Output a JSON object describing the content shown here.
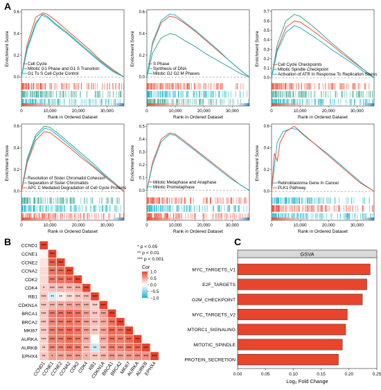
{
  "panel_labels": {
    "a": "A",
    "b": "B",
    "c": "C"
  },
  "colors": {
    "red": "#ef4d35",
    "cyan": "#19b4cb",
    "teal": "#36a58f",
    "blue": "#2c6ea8",
    "pos": "#e8452c",
    "neg": "#1eb1d2"
  },
  "chart_data": [
    {
      "type": "line",
      "panel": "A1",
      "ylabel": "Enrichment Score",
      "xlabel": "Rank in Ordered Dataset",
      "xlim": [
        0,
        36000
      ],
      "ylim": [
        -0.05,
        0.62
      ],
      "xticks": [
        "0",
        "10,000",
        "20,000",
        "30,000"
      ],
      "xtick_values": [
        0,
        10000,
        20000,
        30000
      ],
      "yticks": [
        "0.0",
        "0.2",
        "0.4",
        "0.6"
      ],
      "ytick_values": [
        0,
        0.2,
        0.4,
        0.6
      ],
      "legend": [
        "Cell Cycle",
        "Mitotic G1 Phase and G1 S Transition",
        "G1 To S Cell Cycle Control"
      ],
      "series": [
        {
          "name": "Cell Cycle",
          "color": "red",
          "x": [
            0,
            2000,
            5000,
            7500,
            9000,
            12000,
            16000,
            20000,
            24000,
            28000,
            32000,
            36000
          ],
          "y": [
            0,
            0.3,
            0.55,
            0.59,
            0.58,
            0.52,
            0.43,
            0.34,
            0.25,
            0.15,
            0.07,
            0
          ]
        },
        {
          "name": "Mitotic G1 Phase and G1 S Transition",
          "color": "teal",
          "x": [
            0,
            2000,
            5000,
            7500,
            9000,
            12000,
            16000,
            20000,
            24000,
            28000,
            32000,
            36000
          ],
          "y": [
            0,
            0.27,
            0.5,
            0.58,
            0.56,
            0.49,
            0.41,
            0.32,
            0.23,
            0.14,
            0.06,
            0
          ]
        },
        {
          "name": "G1 To S Cell Cycle Control",
          "color": "cyan",
          "x": [
            0,
            2000,
            5000,
            7000,
            9000,
            12000,
            16000,
            20000,
            24000,
            28000,
            32000,
            36000
          ],
          "y": [
            0,
            0.25,
            0.48,
            0.57,
            0.55,
            0.48,
            0.4,
            0.31,
            0.22,
            0.13,
            0.05,
            0
          ]
        }
      ]
    },
    {
      "type": "line",
      "panel": "A2",
      "ylabel": "Enrichment Score",
      "xlabel": "Rank in Ordered Dataset",
      "xlim": [
        0,
        36000
      ],
      "ylim": [
        -0.05,
        0.62
      ],
      "xticks": [
        "0",
        "10,000",
        "20,000",
        "30,000"
      ],
      "xtick_values": [
        0,
        10000,
        20000,
        30000
      ],
      "yticks": [
        "0.0",
        "0.2",
        "0.4",
        "0.6"
      ],
      "ytick_values": [
        0,
        0.2,
        0.4,
        0.6
      ],
      "legend": [
        "S Phase",
        "Synthesis of DNA",
        "Mitotic G2 G2 M Phases"
      ],
      "series": [
        {
          "name": "S Phase",
          "color": "red",
          "x": [
            0,
            2000,
            5000,
            8000,
            10000,
            13000,
            17000,
            21000,
            25000,
            29000,
            33000,
            36000
          ],
          "y": [
            0,
            0.3,
            0.5,
            0.56,
            0.55,
            0.5,
            0.42,
            0.33,
            0.24,
            0.15,
            0.06,
            0
          ]
        },
        {
          "name": "Synthesis of DNA",
          "color": "cyan",
          "x": [
            0,
            2000,
            5000,
            8000,
            10000,
            13000,
            17000,
            21000,
            25000,
            29000,
            33000,
            36000
          ],
          "y": [
            0,
            0.32,
            0.52,
            0.58,
            0.57,
            0.51,
            0.43,
            0.34,
            0.25,
            0.15,
            0.06,
            0
          ]
        },
        {
          "name": "Mitotic G2 G2 M Phases",
          "color": "teal",
          "x": [
            0,
            2000,
            5000,
            8000,
            10000,
            13000,
            17000,
            21000,
            25000,
            29000,
            33000,
            36000
          ],
          "y": [
            0,
            0.22,
            0.36,
            0.4,
            0.39,
            0.34,
            0.28,
            0.21,
            0.15,
            0.09,
            0.03,
            0
          ]
        }
      ]
    },
    {
      "type": "line",
      "panel": "A3",
      "ylabel": "Enrichment Score",
      "xlabel": "Rank in Ordered Dataset",
      "xlim": [
        0,
        36000
      ],
      "ylim": [
        -0.05,
        0.72
      ],
      "xticks": [
        "0",
        "10,000",
        "20,000",
        "30,000"
      ],
      "xtick_values": [
        0,
        10000,
        20000,
        30000
      ],
      "yticks": [
        "0.0",
        "0.1",
        "0.2",
        "0.3",
        "0.4",
        "0.5",
        "0.6",
        "0.7"
      ],
      "ytick_values": [
        0,
        0.1,
        0.2,
        0.3,
        0.4,
        0.5,
        0.6,
        0.7
      ],
      "legend": [
        "Cell Cycle Checkpoints",
        "Mitotic Spindle Checkpoint",
        "Activation of ATR In Response To Replication Stress"
      ],
      "series": [
        {
          "name": "Cell Cycle Checkpoints",
          "color": "red",
          "x": [
            0,
            2000,
            5000,
            8000,
            10000,
            13000,
            17000,
            21000,
            25000,
            29000,
            33000,
            36000
          ],
          "y": [
            0,
            0.3,
            0.53,
            0.6,
            0.59,
            0.53,
            0.44,
            0.35,
            0.25,
            0.16,
            0.07,
            0
          ]
        },
        {
          "name": "Mitotic Spindle Checkpoint",
          "color": "teal",
          "x": [
            0,
            2000,
            5000,
            8000,
            10000,
            13000,
            17000,
            21000,
            25000,
            29000,
            33000,
            36000
          ],
          "y": [
            0,
            0.35,
            0.6,
            0.67,
            0.65,
            0.58,
            0.48,
            0.37,
            0.27,
            0.17,
            0.07,
            0
          ]
        },
        {
          "name": "Activation of ATR In Response To Replication Stress",
          "color": "cyan",
          "x": [
            0,
            2000,
            5000,
            8000,
            10000,
            13000,
            17000,
            21000,
            25000,
            29000,
            33000,
            36000
          ],
          "y": [
            0,
            0.28,
            0.48,
            0.55,
            0.53,
            0.47,
            0.39,
            0.3,
            0.22,
            0.14,
            0.05,
            0
          ]
        }
      ]
    },
    {
      "type": "line",
      "panel": "A4",
      "ylabel": "Enrichment Score",
      "xlabel": "Rank in Ordered Dataset",
      "xlim": [
        0,
        36000
      ],
      "ylim": [
        -0.05,
        0.62
      ],
      "xticks": [
        "0",
        "10,000",
        "20,000",
        "30,000"
      ],
      "xtick_values": [
        0,
        10000,
        20000,
        30000
      ],
      "yticks": [
        "0.0",
        "0.2",
        "0.4",
        "0.6"
      ],
      "ytick_values": [
        0,
        0.2,
        0.4,
        0.6
      ],
      "legend": [
        "Resolution of Sister Chromatid Cohesion",
        "Separation of Sister Chromatids",
        "APC C Mediated Degradation of Cell Cycle Proteins"
      ],
      "series": [
        {
          "name": "Resolution of Sister Chromatid Cohesion",
          "color": "teal",
          "x": [
            0,
            2000,
            5000,
            8000,
            10000,
            13000,
            17000,
            21000,
            25000,
            29000,
            33000,
            36000
          ],
          "y": [
            0,
            0.3,
            0.52,
            0.6,
            0.59,
            0.53,
            0.44,
            0.35,
            0.26,
            0.16,
            0.07,
            0
          ]
        },
        {
          "name": "Separation of Sister Chromatids",
          "color": "cyan",
          "x": [
            0,
            2000,
            5000,
            8000,
            10000,
            13000,
            17000,
            21000,
            25000,
            29000,
            33000,
            36000
          ],
          "y": [
            0,
            0.28,
            0.5,
            0.58,
            0.57,
            0.51,
            0.42,
            0.33,
            0.24,
            0.15,
            0.06,
            0
          ]
        },
        {
          "name": "APC C Mediated Degradation of Cell Cycle Proteins",
          "color": "red",
          "x": [
            0,
            2000,
            5000,
            8000,
            10000,
            13000,
            17000,
            21000,
            25000,
            29000,
            33000,
            36000
          ],
          "y": [
            0,
            0.26,
            0.47,
            0.55,
            0.54,
            0.48,
            0.4,
            0.31,
            0.23,
            0.14,
            0.06,
            0
          ]
        }
      ]
    },
    {
      "type": "line",
      "panel": "A5",
      "ylabel": "Enrichment Score",
      "xlabel": "Rank in Ordered Dataset",
      "xlim": [
        0,
        36000
      ],
      "ylim": [
        -0.05,
        0.52
      ],
      "xticks": [
        "0",
        "10,000",
        "20,000",
        "30,000"
      ],
      "xtick_values": [
        0,
        10000,
        20000,
        30000
      ],
      "yticks": [
        "0.0",
        "0.1",
        "0.2",
        "0.3",
        "0.4",
        "0.5"
      ],
      "ytick_values": [
        0,
        0.1,
        0.2,
        0.3,
        0.4,
        0.5
      ],
      "legend": [
        "Mitotic Metaphase and Anaphase",
        "Mitotic Prometaphase"
      ],
      "series": [
        {
          "name": "Mitotic Metaphase and Anaphase",
          "color": "red",
          "x": [
            0,
            2000,
            5000,
            8000,
            10000,
            13000,
            17000,
            21000,
            25000,
            29000,
            33000,
            36000
          ],
          "y": [
            0,
            0.22,
            0.4,
            0.45,
            0.44,
            0.39,
            0.32,
            0.25,
            0.18,
            0.11,
            0.04,
            0
          ]
        },
        {
          "name": "Mitotic Prometaphase",
          "color": "cyan",
          "x": [
            0,
            2000,
            5000,
            8000,
            10000,
            13000,
            17000,
            21000,
            25000,
            29000,
            33000,
            36000
          ],
          "y": [
            0,
            0.2,
            0.38,
            0.44,
            0.43,
            0.38,
            0.31,
            0.24,
            0.17,
            0.1,
            0.04,
            0
          ]
        }
      ]
    },
    {
      "type": "line",
      "panel": "A6",
      "ylabel": "Enrichment Score",
      "xlabel": "Rank in Ordered Dataset",
      "xlim": [
        0,
        36000
      ],
      "ylim": [
        -0.05,
        0.62
      ],
      "xticks": [
        "0",
        "10,000",
        "20,000",
        "30,000"
      ],
      "xtick_values": [
        0,
        10000,
        20000,
        30000
      ],
      "yticks": [
        "0.0",
        "0.2",
        "0.4",
        "0.6"
      ],
      "ytick_values": [
        0,
        0.2,
        0.4,
        0.6
      ],
      "legend": [
        "Retinoblastoma Gene In Cancer",
        "PLK1 Pathway"
      ],
      "series": [
        {
          "name": "Retinoblastoma Gene In Cancer",
          "color": "cyan",
          "x": [
            0,
            2000,
            4000,
            7000,
            9000,
            12000,
            16000,
            20000,
            24000,
            28000,
            32000,
            36000
          ],
          "y": [
            0,
            0.45,
            0.55,
            0.58,
            0.57,
            0.5,
            0.42,
            0.34,
            0.25,
            0.16,
            0.07,
            0
          ]
        },
        {
          "name": "PLK1 Pathway",
          "color": "red",
          "x": [
            0,
            1000,
            2000,
            3000,
            5000,
            8000,
            11000,
            15000,
            19000,
            23000,
            27000,
            31000,
            36000
          ],
          "y": [
            0,
            0.35,
            0.28,
            0.45,
            0.55,
            0.6,
            0.53,
            0.44,
            0.35,
            0.26,
            0.17,
            0.08,
            0
          ]
        }
      ]
    },
    {
      "type": "heatmap",
      "panel": "B",
      "genes": [
        "CCND1",
        "CCNE1",
        "CCNE2",
        "CCNA2",
        "CDK2",
        "CDK4",
        "RB1",
        "CDKN1A",
        "BRCA1",
        "BRCA2",
        "MKI67",
        "AURKA",
        "AURKB",
        "EPHX4"
      ],
      "legend_title": "Cor",
      "legend_ticks": [
        "1.0",
        "0.5",
        "0.0",
        "−0.5",
        "−1.0"
      ],
      "legend_tick_values": [
        1,
        0.5,
        0,
        -0.5,
        -1
      ],
      "sig_legend": [
        "* p < 0.05",
        "** p < 0.01",
        "*** p < 0.001"
      ],
      "values": [
        [
          1.0
        ],
        [
          0.05,
          1.0
        ],
        [
          0.15,
          0.85,
          1.0
        ],
        [
          0.2,
          0.75,
          0.8,
          1.0
        ],
        [
          0.2,
          0.7,
          0.75,
          0.8,
          1.0
        ],
        [
          0.25,
          0.35,
          0.4,
          0.4,
          0.45,
          1.0
        ],
        [
          0.3,
          -0.2,
          0.1,
          0.2,
          0.3,
          0.35,
          1.0
        ],
        [
          0.3,
          0.4,
          0.45,
          0.5,
          0.5,
          0.4,
          0.25,
          1.0
        ],
        [
          0.3,
          0.7,
          0.75,
          0.8,
          0.75,
          0.5,
          0.3,
          0.5,
          1.0
        ],
        [
          0.3,
          0.65,
          0.7,
          0.75,
          0.7,
          0.5,
          0.35,
          0.45,
          0.75,
          1.0
        ],
        [
          0.3,
          0.7,
          0.75,
          0.8,
          0.75,
          0.5,
          0.3,
          0.5,
          0.8,
          0.75,
          1.0
        ],
        [
          0.25,
          0.7,
          0.7,
          0.8,
          0.7,
          0.45,
          0.0,
          0.45,
          0.75,
          0.7,
          0.8,
          1.0
        ],
        [
          0.25,
          0.65,
          0.65,
          0.75,
          0.7,
          0.4,
          -0.25,
          0.4,
          0.7,
          0.65,
          0.75,
          0.8,
          1.0
        ],
        [
          0.3,
          0.5,
          0.5,
          0.55,
          0.55,
          0.4,
          0.3,
          0.4,
          0.55,
          0.5,
          0.55,
          0.6,
          0.6,
          1.0
        ]
      ],
      "stars": [
        [
          "***"
        ],
        [
          "",
          "***"
        ],
        [
          "",
          "***",
          "***"
        ],
        [
          "",
          "***",
          "***",
          "***"
        ],
        [
          "",
          "***",
          "***",
          "***",
          "***"
        ],
        [
          "*",
          "***",
          "***",
          "***",
          "***",
          "***"
        ],
        [
          "***",
          "**",
          "**",
          "***",
          "***",
          "***",
          "***"
        ],
        [
          "***",
          "***",
          "***",
          "***",
          "***",
          "***",
          "***",
          "***"
        ],
        [
          "***",
          "***",
          "***",
          "***",
          "***",
          "***",
          "***",
          "***",
          "***"
        ],
        [
          "***",
          "***",
          "***",
          "***",
          "***",
          "***",
          "***",
          "***",
          "***",
          "***"
        ],
        [
          "***",
          "***",
          "***",
          "***",
          "***",
          "***",
          "***",
          "***",
          "***",
          "***",
          "***"
        ],
        [
          "***",
          "***",
          "***",
          "***",
          "***",
          "***",
          "",
          "***",
          "***",
          "***",
          "***",
          "***"
        ],
        [
          "**",
          "***",
          "***",
          "***",
          "***",
          "***",
          "**",
          "***",
          "***",
          "***",
          "***",
          "***",
          "***"
        ],
        [
          "**",
          "*",
          "***",
          "***",
          "***",
          "*",
          "***",
          "***",
          "***",
          "***",
          "***",
          "***",
          "***",
          "***"
        ]
      ]
    },
    {
      "type": "bar",
      "panel": "C",
      "title": "GSVA",
      "xlabel": "Log₂ Fold Change",
      "categories": [
        "MYC_TARGETS_V1",
        "E2F_TARGETS",
        "G2M_CHECKPOINT",
        "MYC_TARGETS_V2",
        "MTORC1_SIGNALING",
        "MITOTIC_SPINDLE",
        "PROTEIN_SECRETION"
      ],
      "values": [
        0.238,
        0.232,
        0.224,
        0.197,
        0.194,
        0.188,
        0.181
      ],
      "xlim": [
        0,
        0.25
      ],
      "xticks": [
        "0.00",
        "0.05",
        "0.10",
        "0.15",
        "0.20",
        "0.25"
      ],
      "xtick_values": [
        0,
        0.05,
        0.1,
        0.15,
        0.2,
        0.25
      ]
    }
  ]
}
